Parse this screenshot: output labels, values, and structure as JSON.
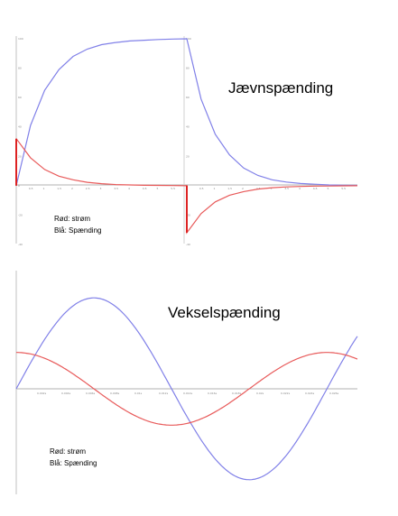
{
  "chart_data": [
    {
      "type": "line",
      "title": "Jævnspænding",
      "legend": [
        "Rød:  strøm",
        "Blå:  Spænding"
      ],
      "legend_position": "bottom-left",
      "grid": false,
      "xlim": [
        0,
        12
      ],
      "ylim": [
        -40,
        100
      ],
      "yticks": [
        -40,
        -20,
        0,
        20,
        40,
        60,
        80,
        100
      ],
      "xticks_left": [
        "0.5",
        "1",
        "1.5",
        "2",
        "2.5",
        "3",
        "3.5",
        "4",
        "4.5",
        "5",
        "5.5"
      ],
      "xticks_right": [
        "0.5",
        "1",
        "1.5",
        "2",
        "2.5",
        "3",
        "3.5",
        "4",
        "4.5",
        "5",
        "5.5"
      ],
      "series": [
        {
          "color": "#8080e8",
          "x": [
            0,
            0.5,
            1,
            1.5,
            2,
            2.5,
            3,
            3.5,
            4,
            4.5,
            5,
            5.5,
            6,
            6.5,
            7,
            7.5,
            8,
            8.5,
            9,
            9.5,
            10,
            10.5,
            11,
            11.5,
            12
          ],
          "y": [
            0,
            41,
            65,
            79,
            88,
            93,
            96,
            97.5,
            98.5,
            99,
            99.5,
            99.8,
            100,
            59,
            35,
            21,
            12,
            7,
            4,
            2.5,
            1.5,
            1,
            0.5,
            0.3,
            0.2
          ]
        },
        {
          "color": "#e85a5a",
          "x": [
            0,
            0.5,
            1,
            1.5,
            2,
            2.5,
            3,
            3.5,
            4,
            4.5,
            5,
            5.5,
            6,
            6,
            6.5,
            7,
            7.5,
            8,
            8.5,
            9,
            9.5,
            10,
            10.5,
            11,
            11.5,
            12
          ],
          "y": [
            32,
            19,
            11,
            6.5,
            4,
            2.3,
            1.4,
            0.8,
            0.5,
            0.3,
            0.2,
            0.1,
            0,
            -32,
            -19,
            -11,
            -6.5,
            -4,
            -2.3,
            -1.4,
            -0.8,
            -0.5,
            -0.3,
            -0.2,
            -0.1,
            0
          ]
        }
      ]
    },
    {
      "type": "line",
      "title": "Vekselspænding",
      "legend": [
        "Rød:  strøm",
        "Blå:  Spænding"
      ],
      "legend_position": "bottom-left",
      "grid": false,
      "xlim": [
        0,
        0.028
      ],
      "ylim": [
        -1.3,
        1.3
      ],
      "xticks": [
        "0.002s",
        "0.004s",
        "0.006s",
        "0.008s",
        "0.01s",
        "0.012s",
        "0.014s",
        "0.016s",
        "0.018s",
        "0.02s",
        "0.022s",
        "0.024s",
        "0.026s"
      ],
      "series": [
        {
          "color": "#8080e8",
          "amplitude": 1.0,
          "period": 0.0255,
          "phase": 0
        },
        {
          "color": "#e85a5a",
          "amplitude": 0.4,
          "period": 0.0255,
          "phase": 0.25
        }
      ]
    }
  ]
}
